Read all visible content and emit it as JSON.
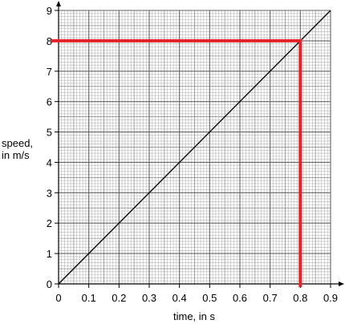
{
  "chart_data": {
    "type": "line",
    "title": "",
    "xlabel": "time, in s",
    "ylabel_lines": [
      "speed,",
      "in m/s"
    ],
    "xlim": [
      0,
      0.9
    ],
    "ylim": [
      0,
      9
    ],
    "grid": true,
    "x_ticks": [
      0,
      0.1,
      0.2,
      0.3,
      0.4,
      0.5,
      0.6,
      0.7,
      0.8,
      0.9
    ],
    "y_ticks": [
      0,
      1,
      2,
      3,
      4,
      5,
      6,
      7,
      8,
      9
    ],
    "x_tick_labels": [
      "0",
      "0.1",
      "0.2",
      "0.3",
      "0.4",
      "0.5",
      "0.6",
      "0.7",
      "0.8",
      "0.9"
    ],
    "y_tick_labels": [
      "0",
      "1",
      "2",
      "3",
      "4",
      "5",
      "6",
      "7",
      "8",
      "9"
    ],
    "series": [
      {
        "x": [
          0,
          0.9
        ],
        "y": [
          0,
          9
        ],
        "color": "#000000"
      }
    ],
    "annotations": [
      {
        "type": "reading-lines",
        "x": 0.8,
        "y": 8,
        "color": "#e8202a"
      }
    ]
  }
}
